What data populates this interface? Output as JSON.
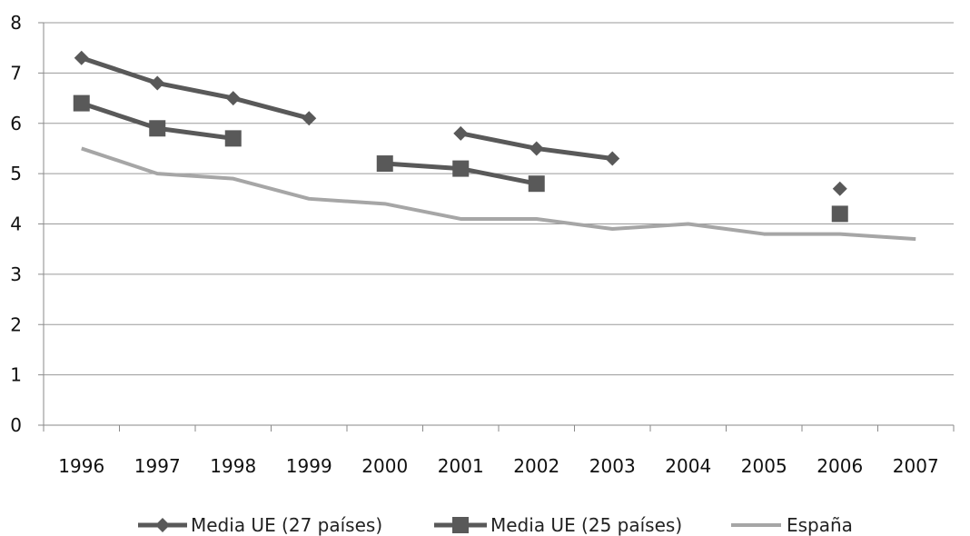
{
  "chart_data": {
    "type": "line",
    "categories": [
      "1996",
      "1997",
      "1998",
      "1999",
      "2000",
      "2001",
      "2002",
      "2003",
      "2004",
      "2005",
      "2006",
      "2007"
    ],
    "ylim": [
      0,
      8
    ],
    "yticks": [
      "0",
      "1",
      "2",
      "3",
      "4",
      "5",
      "6",
      "7",
      "8"
    ],
    "grid": "horizontal",
    "legend": "bottom",
    "series": [
      {
        "name": "Media UE (27 países)",
        "marker": "diamond",
        "color": "#595959",
        "values": [
          7.3,
          6.8,
          6.5,
          6.1,
          null,
          5.8,
          5.5,
          5.3,
          null,
          null,
          4.7,
          null
        ]
      },
      {
        "name": "Media UE (25 países)",
        "marker": "square",
        "color": "#595959",
        "values": [
          6.4,
          5.9,
          5.7,
          null,
          5.2,
          5.1,
          4.8,
          null,
          null,
          null,
          4.2,
          null
        ]
      },
      {
        "name": "España",
        "marker": "none",
        "color": "#a6a6a6",
        "values": [
          5.5,
          5.0,
          4.9,
          4.5,
          4.4,
          4.1,
          4.1,
          3.9,
          4.0,
          3.8,
          3.8,
          3.7
        ]
      }
    ]
  }
}
